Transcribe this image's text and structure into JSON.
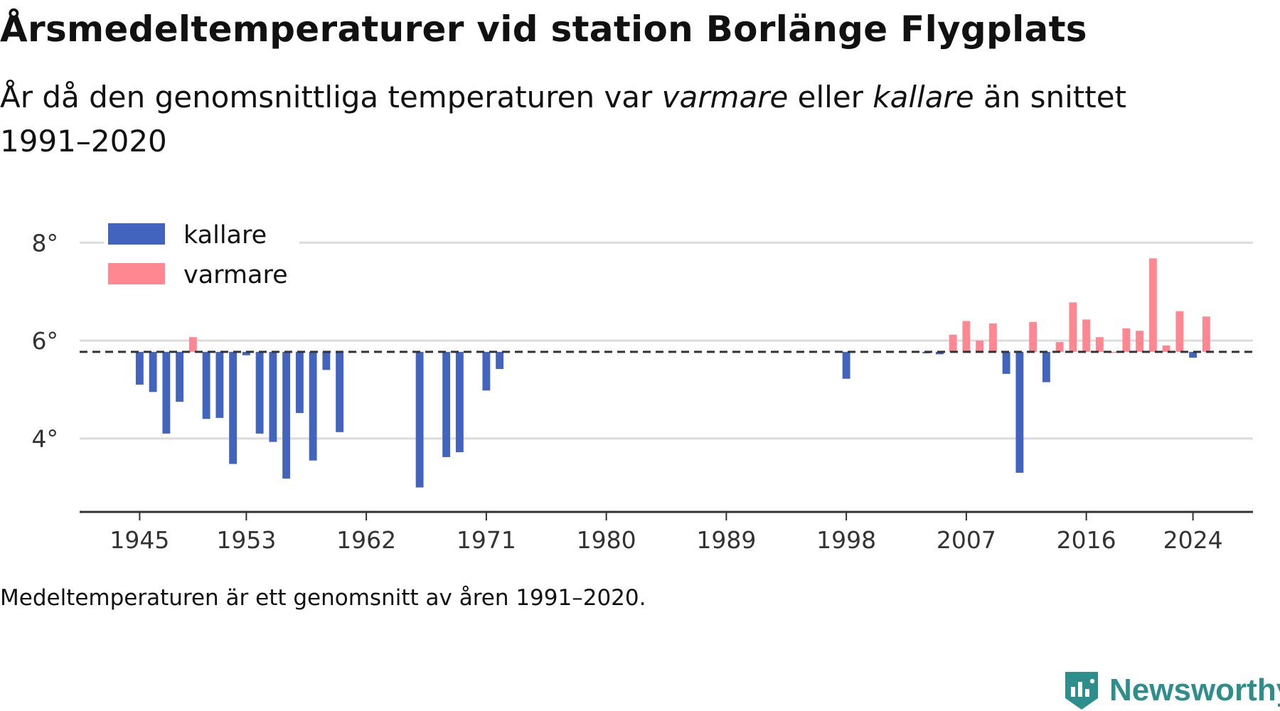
{
  "title": "Årsmedeltemperaturer vid station Borlänge Flygplats",
  "subtitle": {
    "prefix": "År då den genomsnittliga temperaturen var ",
    "warm_word": "varmare",
    "middle": " eller ",
    "cold_word": "kallare",
    "suffix": " än snittet 1991–2020"
  },
  "caption": "Medeltemperaturen är ett genomsnitt av åren 1991–2020.",
  "brand": {
    "name": "Newsworthy",
    "icon": "newsworthy-chart-logo-icon",
    "color": "#2e8e8b"
  },
  "chart_data": {
    "type": "bar",
    "baseline": 5.77,
    "baseline_style": "dashed",
    "ylim": [
      2.5,
      8.6
    ],
    "yticks": [
      4,
      6,
      8
    ],
    "ytick_labels": [
      "4°",
      "6°",
      "8°"
    ],
    "xlim": [
      1940.5,
      2028.5
    ],
    "xticks": [
      1945,
      1953,
      1962,
      1971,
      1980,
      1989,
      1998,
      2007,
      2016,
      2024
    ],
    "xtick_labels": [
      "1945",
      "1953",
      "1962",
      "1971",
      "1980",
      "1989",
      "1998",
      "2007",
      "2016",
      "2024"
    ],
    "grid": true,
    "legend_position": "top-left",
    "colors": {
      "kallare": "#4264be",
      "varmare": "#ff8792",
      "baseline": "#333333",
      "grid": "#dcdcdc"
    },
    "series": [
      {
        "name": "kallare",
        "color": "#4264be"
      },
      {
        "name": "varmare",
        "color": "#ff8792"
      }
    ],
    "x": [
      1945,
      1946,
      1947,
      1948,
      1949,
      1950,
      1951,
      1952,
      1953,
      1954,
      1955,
      1956,
      1957,
      1958,
      1959,
      1960,
      1961,
      1966,
      1968,
      1969,
      1971,
      1972,
      1998,
      2004,
      2005,
      2006,
      2007,
      2008,
      2009,
      2010,
      2011,
      2012,
      2013,
      2014,
      2015,
      2016,
      2017,
      2018,
      2019,
      2020,
      2021,
      2022,
      2023,
      2024,
      2025
    ],
    "values": [
      5.1,
      4.95,
      4.1,
      4.75,
      6.07,
      4.4,
      4.42,
      3.48,
      5.7,
      4.1,
      3.93,
      3.18,
      4.52,
      3.55,
      5.4,
      4.13,
      5.77,
      3.0,
      3.62,
      3.72,
      4.98,
      5.42,
      5.22,
      5.74,
      5.72,
      6.12,
      6.4,
      6.0,
      6.35,
      5.32,
      3.3,
      6.38,
      5.15,
      5.97,
      6.78,
      6.43,
      6.07,
      5.77,
      6.25,
      6.2,
      7.68,
      5.9,
      6.6,
      5.65,
      6.49
    ]
  }
}
